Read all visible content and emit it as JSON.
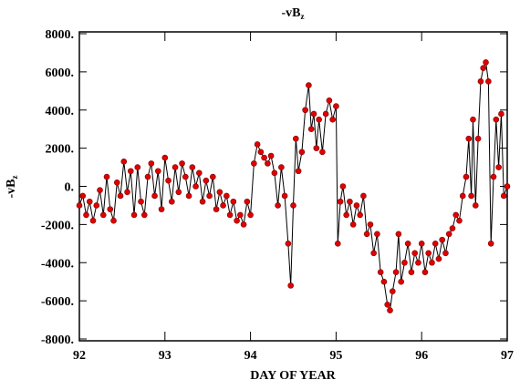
{
  "chart_data": {
    "type": "line",
    "title": {
      "text": "-vB",
      "sub": "z"
    },
    "ylabel": {
      "text": "-vB",
      "sub": "z"
    },
    "xlabel": "DAY OF YEAR",
    "xlim": [
      92,
      97
    ],
    "xticks": [
      92,
      93,
      94,
      95,
      96,
      97
    ],
    "ylim": [
      -8000,
      8000
    ],
    "yticks": [
      {
        "value": -8000,
        "label": "-8000."
      },
      {
        "value": -6000,
        "label": "-6000."
      },
      {
        "value": -4000,
        "label": "-4000."
      },
      {
        "value": -2000,
        "label": "-2000."
      },
      {
        "value": 0,
        "label": "0."
      },
      {
        "value": 2000,
        "label": "2000."
      },
      {
        "value": 4000,
        "label": "4000."
      },
      {
        "value": 6000,
        "label": "6000."
      },
      {
        "value": 8000,
        "label": "8000."
      }
    ],
    "series": [
      {
        "color": "#000000",
        "marker_color": "#e00000",
        "x": [
          92.0,
          92.04,
          92.08,
          92.12,
          92.16,
          92.2,
          92.24,
          92.28,
          92.32,
          92.36,
          92.4,
          92.44,
          92.48,
          92.52,
          92.56,
          92.6,
          92.64,
          92.68,
          92.72,
          92.76,
          92.8,
          92.84,
          92.88,
          92.92,
          92.96,
          93.0,
          93.04,
          93.08,
          93.12,
          93.16,
          93.2,
          93.24,
          93.28,
          93.32,
          93.36,
          93.4,
          93.44,
          93.48,
          93.52,
          93.56,
          93.6,
          93.64,
          93.68,
          93.72,
          93.76,
          93.8,
          93.84,
          93.88,
          93.92,
          93.96,
          94.0,
          94.04,
          94.08,
          94.12,
          94.16,
          94.2,
          94.24,
          94.28,
          94.32,
          94.36,
          94.4,
          94.44,
          94.47,
          94.5,
          94.53,
          94.56,
          94.6,
          94.64,
          94.68,
          94.71,
          94.74,
          94.77,
          94.8,
          94.84,
          94.88,
          94.92,
          94.96,
          95.0,
          95.02,
          95.05,
          95.08,
          95.12,
          95.16,
          95.2,
          95.24,
          95.28,
          95.32,
          95.36,
          95.4,
          95.44,
          95.48,
          95.52,
          95.56,
          95.6,
          95.63,
          95.66,
          95.7,
          95.73,
          95.76,
          95.8,
          95.84,
          95.88,
          95.92,
          95.96,
          96.0,
          96.04,
          96.08,
          96.12,
          96.16,
          96.2,
          96.24,
          96.28,
          96.32,
          96.36,
          96.4,
          96.44,
          96.48,
          96.52,
          96.55,
          96.58,
          96.6,
          96.63,
          96.66,
          96.69,
          96.72,
          96.75,
          96.78,
          96.81,
          96.84,
          96.87,
          96.9,
          96.93,
          96.96,
          97.0
        ],
        "values": [
          -1000,
          -500,
          -1500,
          -800,
          -1800,
          -1000,
          -200,
          -1500,
          500,
          -1200,
          -1800,
          200,
          -500,
          1300,
          -300,
          800,
          -1500,
          1000,
          -800,
          -1500,
          500,
          1200,
          -500,
          800,
          -1200,
          1500,
          300,
          -800,
          1000,
          -300,
          1200,
          500,
          -500,
          1000,
          0,
          700,
          -800,
          300,
          -500,
          500,
          -1200,
          -300,
          -1000,
          -500,
          -1500,
          -800,
          -1800,
          -1500,
          -2000,
          -800,
          -1500,
          1200,
          2200,
          1800,
          1500,
          1200,
          1600,
          700,
          -1000,
          1000,
          -500,
          -3000,
          -5200,
          -1000,
          2500,
          800,
          1800,
          4000,
          5300,
          3000,
          3800,
          2000,
          3500,
          1800,
          3800,
          4500,
          3500,
          4200,
          -3000,
          -800,
          0,
          -1500,
          -800,
          -2000,
          -1000,
          -1500,
          -500,
          -2500,
          -2000,
          -3500,
          -2500,
          -4500,
          -5000,
          -6200,
          -6500,
          -5500,
          -4500,
          -2500,
          -5000,
          -4000,
          -3000,
          -4500,
          -3500,
          -4000,
          -3000,
          -4500,
          -3500,
          -4000,
          -3000,
          -3800,
          -2800,
          -3500,
          -2500,
          -2200,
          -1500,
          -1800,
          -500,
          500,
          2500,
          -500,
          3500,
          -1000,
          2500,
          5500,
          6200,
          6500,
          5500,
          -3000,
          500,
          3500,
          1000,
          3800,
          -500,
          0
        ]
      }
    ]
  }
}
